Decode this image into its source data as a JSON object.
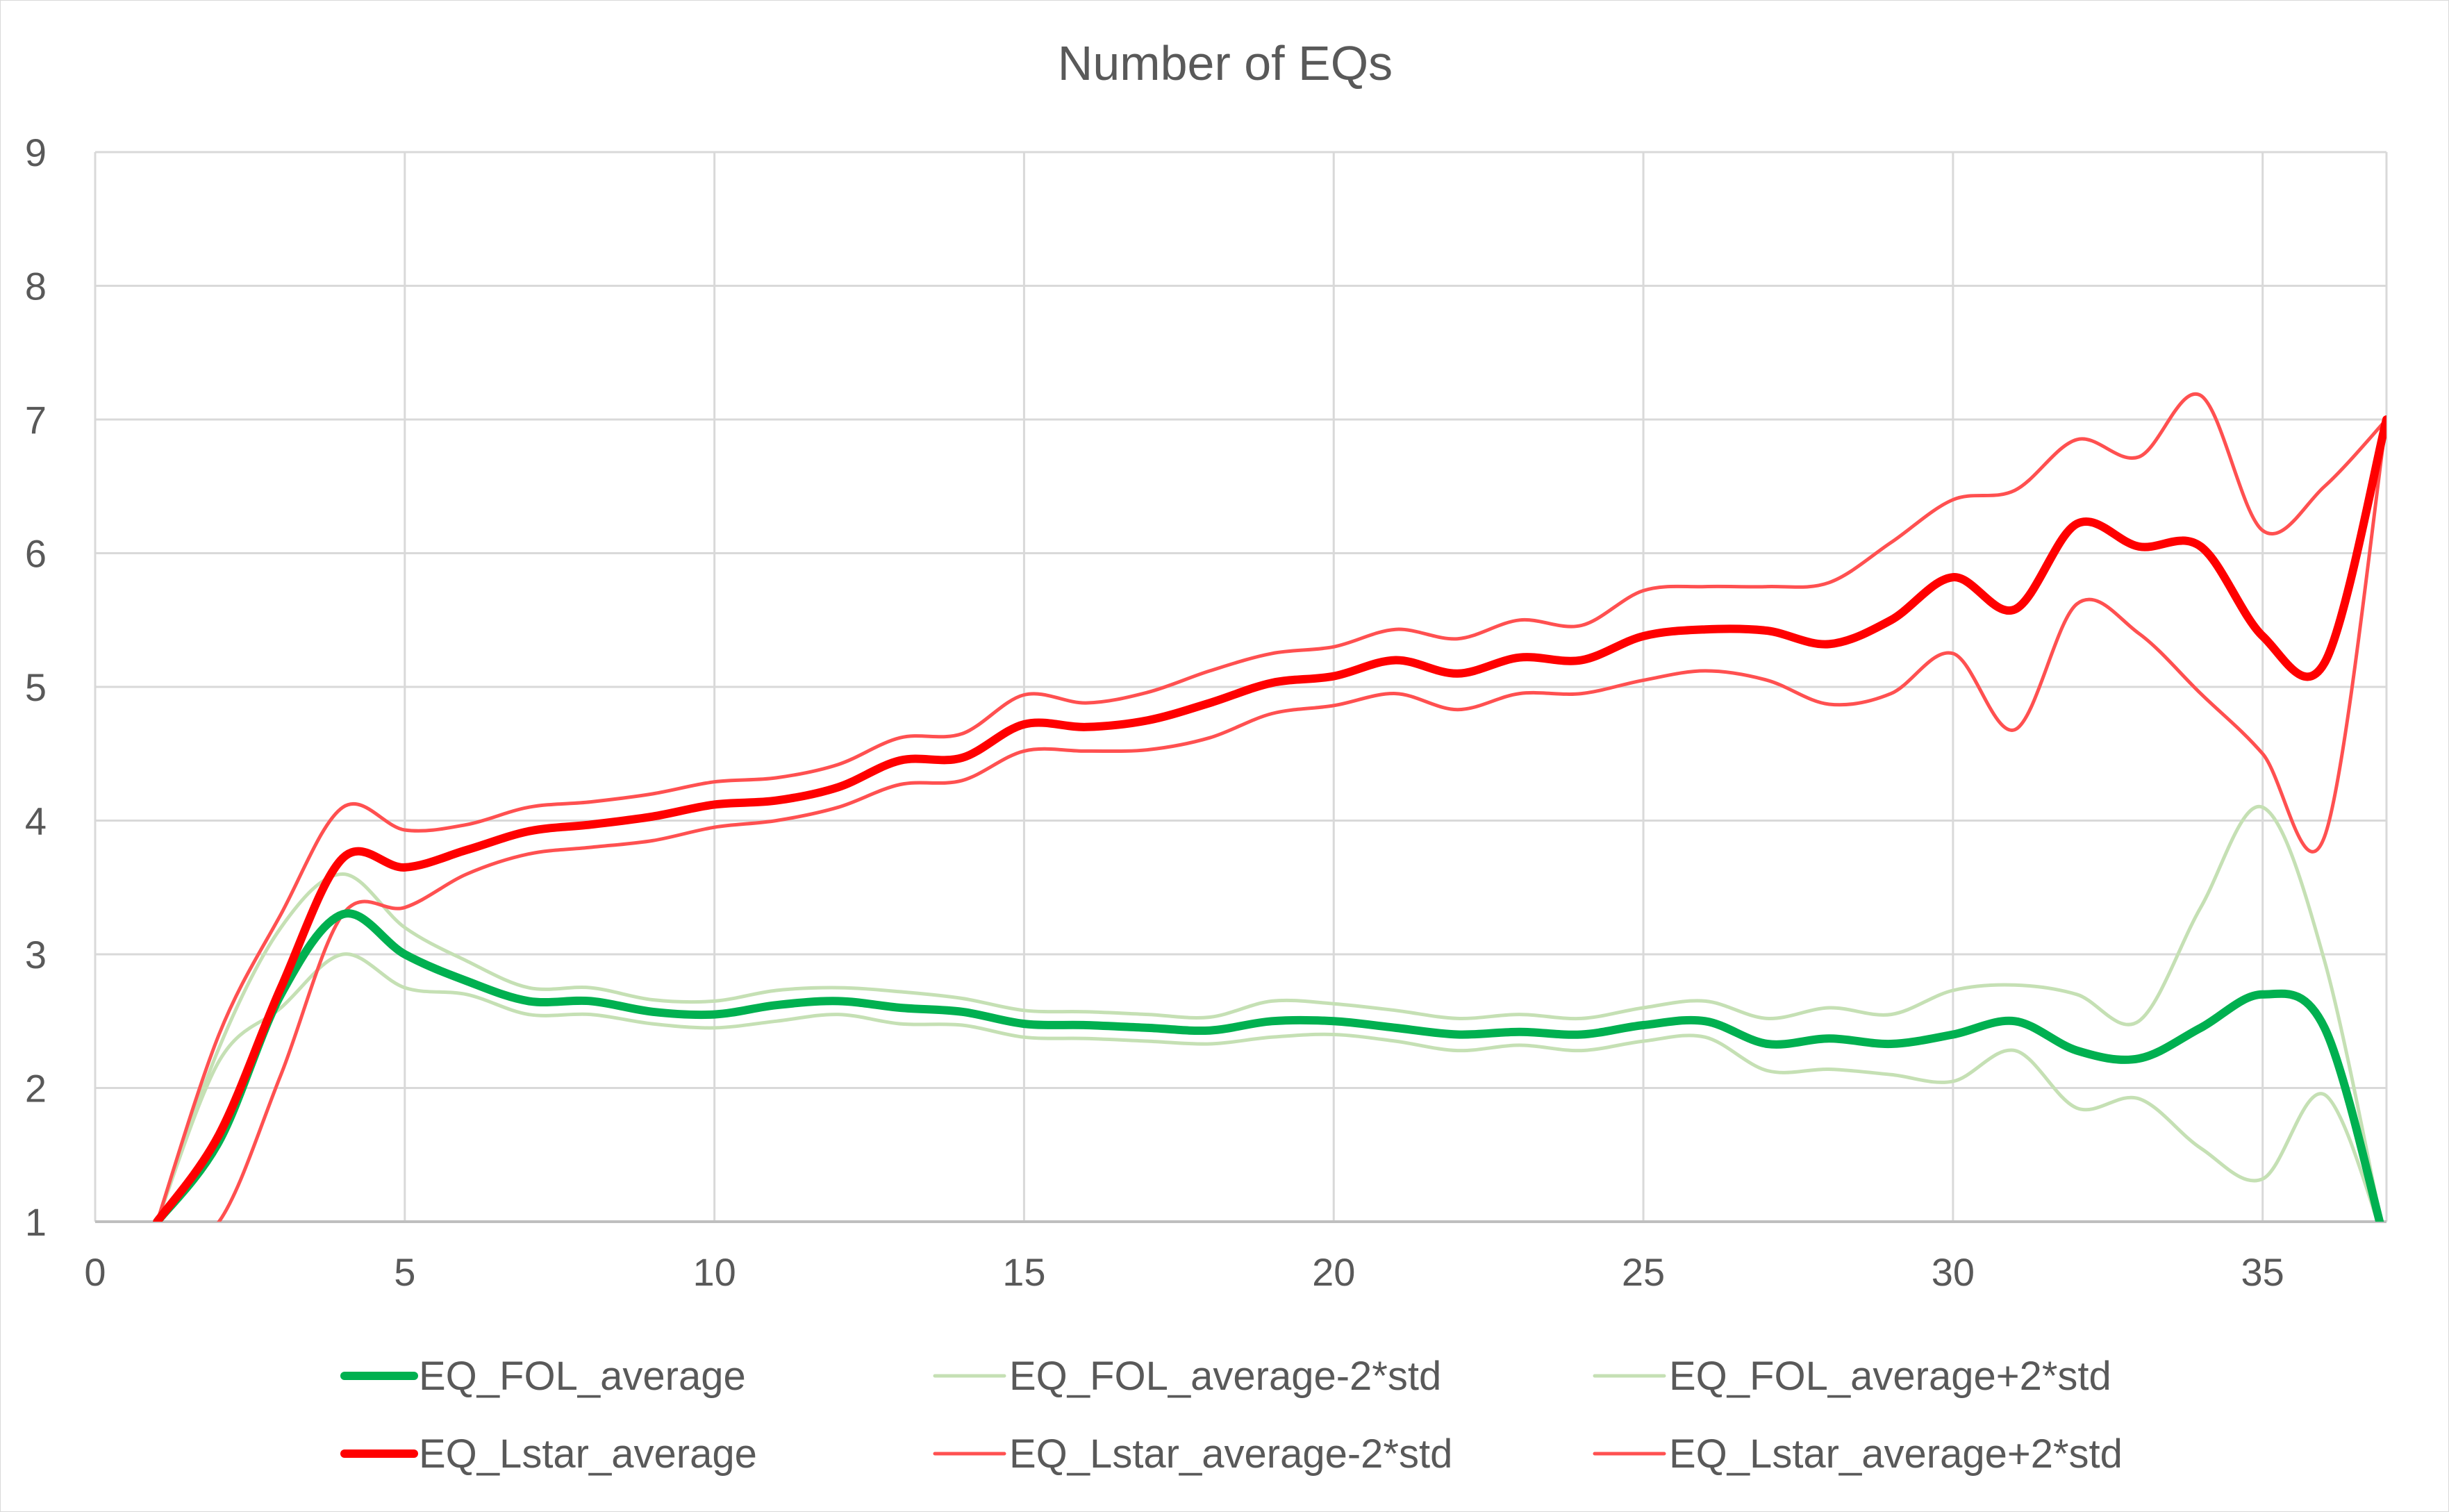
{
  "chart_data": {
    "type": "line",
    "title": "Number of EQs",
    "xlabel": "",
    "ylabel": "",
    "xlim": [
      0,
      37
    ],
    "ylim": [
      1,
      9
    ],
    "xticks": [
      "0",
      "5",
      "10",
      "15",
      "20",
      "25",
      "30",
      "35"
    ],
    "yticks": [
      "1",
      "2",
      "3",
      "4",
      "5",
      "6",
      "7",
      "8",
      "9"
    ],
    "grid": true,
    "legend_position": "bottom",
    "x": [
      1,
      2,
      3,
      4,
      5,
      6,
      7,
      8,
      9,
      10,
      11,
      12,
      13,
      14,
      15,
      16,
      17,
      18,
      19,
      20,
      21,
      22,
      23,
      24,
      25,
      26,
      27,
      28,
      29,
      30,
      31,
      32,
      33,
      34,
      35,
      36,
      37
    ],
    "series": [
      {
        "name": "EQ_FOL_average",
        "color": "#00b050",
        "width": 12,
        "values": [
          1.0,
          1.6,
          2.7,
          3.3,
          3.0,
          2.8,
          2.65,
          2.65,
          2.57,
          2.55,
          2.62,
          2.65,
          2.6,
          2.57,
          2.48,
          2.47,
          2.45,
          2.43,
          2.5,
          2.5,
          2.45,
          2.4,
          2.42,
          2.4,
          2.47,
          2.5,
          2.33,
          2.37,
          2.33,
          2.4,
          2.5,
          2.28,
          2.22,
          2.45,
          2.7,
          2.45,
          0.8
        ]
      },
      {
        "name": "EQ_FOL_average-2*std",
        "color": "#c5e0b4",
        "width": 5,
        "values": [
          1.0,
          2.2,
          2.6,
          3.0,
          2.75,
          2.7,
          2.55,
          2.55,
          2.48,
          2.45,
          2.5,
          2.55,
          2.48,
          2.47,
          2.38,
          2.37,
          2.35,
          2.33,
          2.38,
          2.4,
          2.35,
          2.28,
          2.32,
          2.28,
          2.35,
          2.38,
          2.13,
          2.14,
          2.1,
          2.05,
          2.28,
          1.85,
          1.92,
          1.55,
          1.32,
          1.95,
          0.8
        ]
      },
      {
        "name": "EQ_FOL_average+2*std",
        "color": "#c5e0b4",
        "width": 5,
        "values": [
          1.0,
          2.3,
          3.2,
          3.6,
          3.2,
          2.95,
          2.75,
          2.75,
          2.66,
          2.65,
          2.73,
          2.75,
          2.72,
          2.67,
          2.58,
          2.57,
          2.55,
          2.53,
          2.65,
          2.63,
          2.58,
          2.52,
          2.55,
          2.52,
          2.6,
          2.65,
          2.52,
          2.6,
          2.55,
          2.73,
          2.77,
          2.7,
          2.5,
          3.35,
          4.1,
          2.95,
          0.8
        ]
      },
      {
        "name": "EQ_Lstar_average",
        "color": "#ff0000",
        "width": 12,
        "values": [
          1.0,
          1.65,
          2.75,
          3.72,
          3.65,
          3.78,
          3.92,
          3.97,
          4.03,
          4.12,
          4.15,
          4.25,
          4.45,
          4.47,
          4.72,
          4.7,
          4.75,
          4.88,
          5.03,
          5.08,
          5.2,
          5.1,
          5.22,
          5.2,
          5.38,
          5.43,
          5.42,
          5.32,
          5.5,
          5.82,
          5.58,
          6.22,
          6.05,
          6.05,
          5.38,
          5.18,
          7.0
        ]
      },
      {
        "name": "EQ_Lstar_average-2*std",
        "color": "#ff5050",
        "width": 5,
        "values": [
          0.8,
          1.0,
          2.1,
          3.3,
          3.35,
          3.6,
          3.75,
          3.8,
          3.85,
          3.95,
          4.0,
          4.1,
          4.27,
          4.3,
          4.52,
          4.52,
          4.53,
          4.62,
          4.8,
          4.86,
          4.95,
          4.83,
          4.95,
          4.95,
          5.05,
          5.12,
          5.05,
          4.87,
          4.95,
          5.25,
          4.68,
          5.62,
          5.4,
          4.95,
          4.5,
          3.88,
          7.0
        ]
      },
      {
        "name": "EQ_Lstar_average+2*std",
        "color": "#ff5050",
        "width": 5,
        "values": [
          1.0,
          2.4,
          3.3,
          4.1,
          3.93,
          3.97,
          4.1,
          4.14,
          4.2,
          4.29,
          4.32,
          4.42,
          4.62,
          4.65,
          4.94,
          4.88,
          4.96,
          5.12,
          5.25,
          5.3,
          5.43,
          5.36,
          5.5,
          5.46,
          5.72,
          5.75,
          5.75,
          5.78,
          6.08,
          6.4,
          6.47,
          6.85,
          6.72,
          7.18,
          6.17,
          6.5,
          7.0
        ]
      }
    ]
  }
}
